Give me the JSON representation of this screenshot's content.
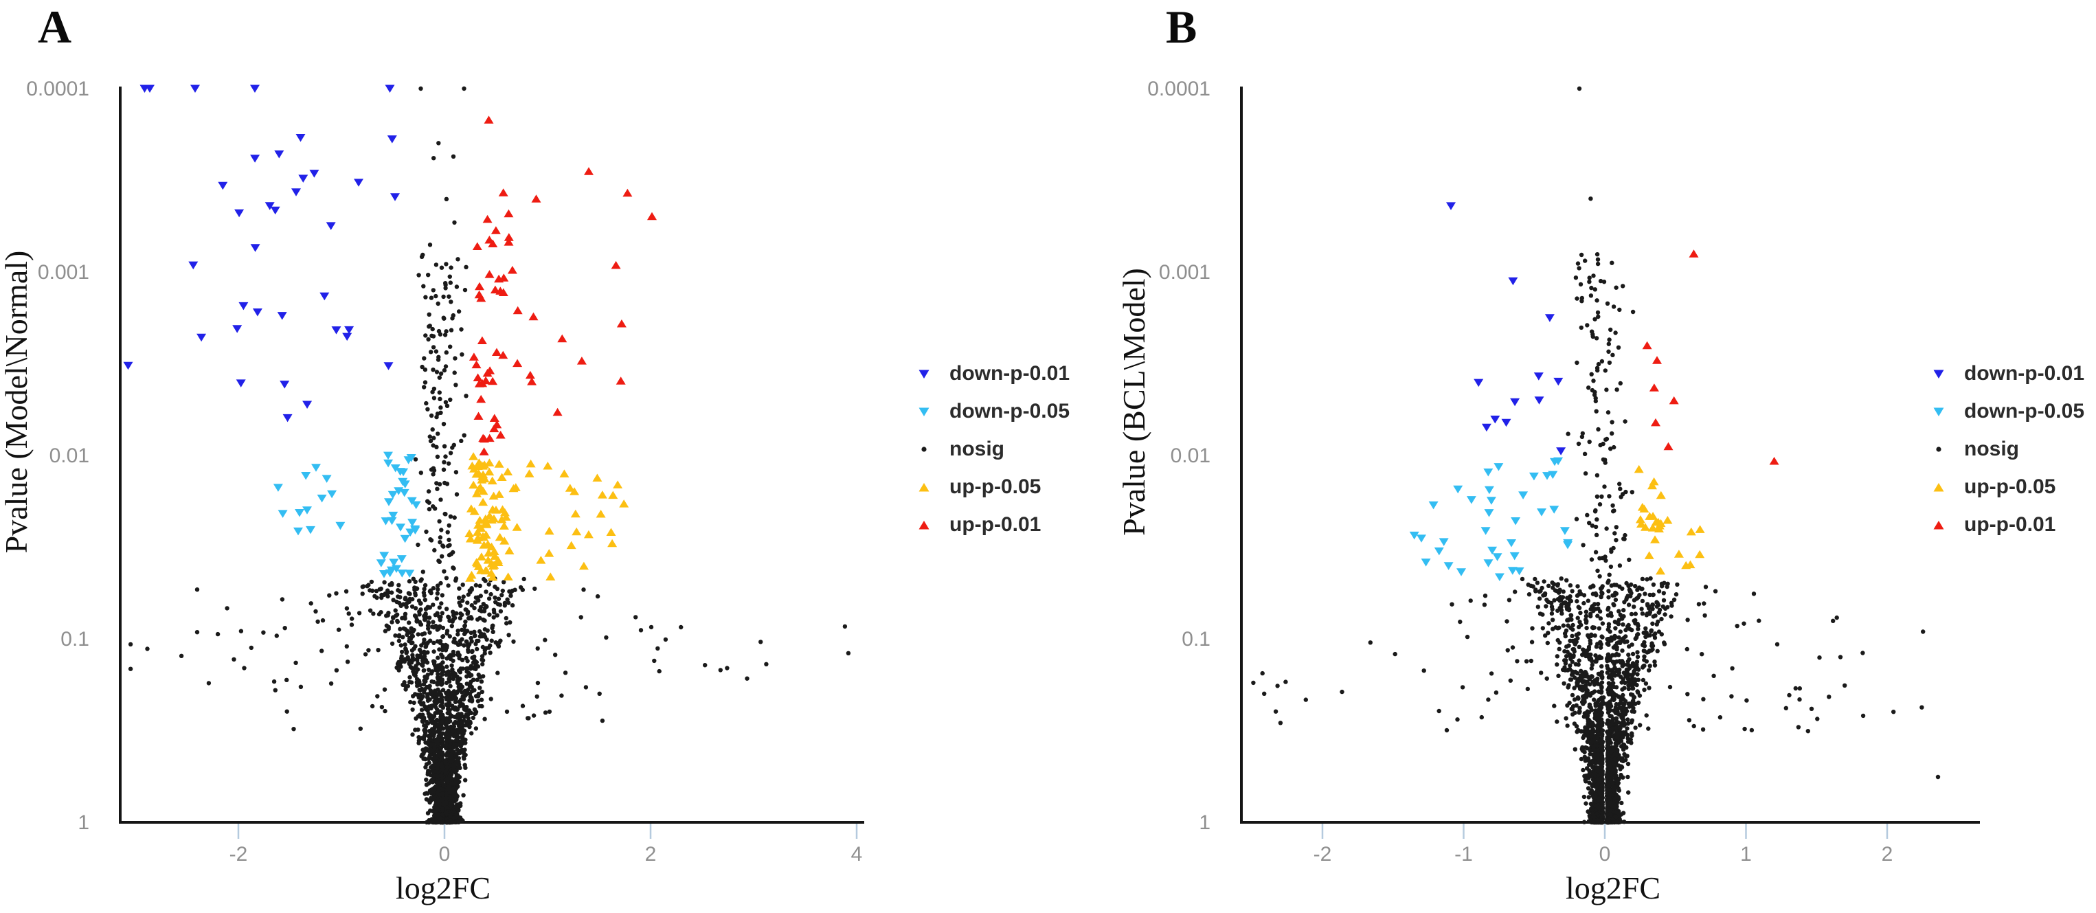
{
  "figure": {
    "background": "#ffffff"
  },
  "seed": 7,
  "colors": {
    "down_p_001": "#2121e8",
    "down_p_005": "#33bdf2",
    "nosig": "#1a1a1a",
    "up_p_005": "#fcbf12",
    "up_p_001": "#ee1c12",
    "axis": "#151515",
    "tick_mark": "#b5cade",
    "tick_label": "#8f8f8f"
  },
  "chart_data": [
    {
      "panel_label": "A",
      "type": "scatter",
      "xlabel": "log2FC",
      "ylabel": "Pvalue (Model\\Normal)",
      "x_ticks": [
        -2,
        0,
        2,
        4
      ],
      "y_ticks": [
        {
          "label": "0.0001",
          "p": 0.0001
        },
        {
          "label": "0.001",
          "p": 0.001
        },
        {
          "label": "0.01",
          "p": 0.01
        },
        {
          "label": "0.1",
          "p": 0.1
        },
        {
          "label": "1",
          "p": 1
        }
      ],
      "xlim": [
        -3.1,
        4.05
      ],
      "p_lim": [
        0.0001,
        1
      ],
      "y_scale": "log10 p-value, inverted (smallest p on top)",
      "legend_position": "right of plot",
      "legend": [
        {
          "label": "down-p-0.01",
          "color": "#2121e8",
          "marker": "triangle-down"
        },
        {
          "label": "down-p-0.05",
          "color": "#33bdf2",
          "marker": "triangle-down"
        },
        {
          "label": "nosig",
          "color": "#1a1a1a",
          "marker": "dot"
        },
        {
          "label": "up-p-0.05",
          "color": "#fcbf12",
          "marker": "triangle-up"
        },
        {
          "label": "up-p-0.01",
          "color": "#ee1c12",
          "marker": "triangle-up"
        }
      ],
      "series": [
        {
          "name": "nosig",
          "color": "#1a1a1a",
          "marker": "dot",
          "clusters": [
            {
              "kind": "funnel",
              "n": 2300,
              "emax": 1.33,
              "pow": 2.1,
              "w0": 0.045,
              "wmax": 0.72,
              "wp": 1.55,
              "noise": 0.05,
              "gap": 0.012
            },
            {
              "n": 130,
              "x": {
                "g": [
                  0,
                  0.95
                ],
                "clip": [
                  -2.4,
                  2.4
                ]
              },
              "e": {
                "u": [
                  0.5,
                  1.3
                ]
              }
            },
            {
              "n": 16,
              "x": {
                "u": [
                  1.5,
                  4.0
                ]
              },
              "e": {
                "g": [
                  0.95,
                  0.12
                ]
              }
            },
            {
              "n": 13,
              "x": {
                "u": [
                  -3.05,
                  -1.5
                ]
              },
              "e": {
                "g": [
                  1.0,
                  0.15
                ]
              }
            },
            {
              "n": 150,
              "x": {
                "g": [
                  -0.02,
                  0.1
                ],
                "clip": [
                  -0.28,
                  0.21
                ]
              },
              "e": {
                "u": [
                  1.33,
                  3.05
                ]
              }
            },
            {
              "n": 9,
              "x": {
                "g": [
                  -0.03,
                  0.11
                ],
                "clip": [
                  -0.28,
                  0.21
                ]
              },
              "e": {
                "u": [
                  3.05,
                  3.8
                ]
              }
            }
          ],
          "points": [
            [
              -0.23,
              4
            ],
            [
              0.19,
              4
            ]
          ]
        },
        {
          "name": "down-p-0.01",
          "color": "#2121e8",
          "marker": "triangle-down",
          "clusters": [
            {
              "n": 30,
              "x": {
                "u": [
                  -2.65,
                  -0.35
                ]
              },
              "e": {
                "u": [
                  2.02,
                  3.85
                ]
              }
            }
          ],
          "points": [
            [
              -2.91,
              4
            ],
            [
              -2.86,
              4
            ],
            [
              -2.42,
              4
            ],
            [
              -1.84,
              4
            ],
            [
              -0.53,
              4
            ],
            [
              -3.07,
              2.49
            ]
          ]
        },
        {
          "name": "down-p-0.05",
          "color": "#33bdf2",
          "marker": "triangle-down",
          "clusters": [
            {
              "n": 34,
              "x": {
                "u": [
                  -0.62,
                  -0.27
                ]
              },
              "e": {
                "u": [
                  1.33,
                  2.0
                ]
              }
            },
            {
              "n": 12,
              "x": {
                "u": [
                  -1.7,
                  -0.62
                ]
              },
              "e": {
                "u": [
                  1.34,
                  1.98
                ]
              }
            }
          ]
        },
        {
          "name": "up-p-0.05",
          "color": "#fcbf12",
          "marker": "triangle-up",
          "clusters": [
            {
              "n": 62,
              "x": {
                "u": [
                  0.24,
                  0.48
                ]
              },
              "e": {
                "u": [
                  1.33,
                  2.0
                ]
              }
            },
            {
              "n": 46,
              "x": {
                "pw": [
                  0.48,
                  1.8,
                  1.8
                ]
              },
              "e": {
                "u": [
                  1.33,
                  1.97
                ]
              }
            }
          ]
        },
        {
          "name": "up-p-0.01",
          "color": "#ee1c12",
          "marker": "triangle-up",
          "clusters": [
            {
              "n": 30,
              "x": {
                "u": [
                  0.28,
                  0.52
                ]
              },
              "e": {
                "u": [
                  2.0,
                  3.3
                ]
              }
            },
            {
              "n": 24,
              "x": {
                "pw": [
                  0.52,
                  2.05,
                  1.6
                ]
              },
              "e": {
                "u": [
                  2.0,
                  3.5
                ]
              }
            }
          ],
          "points": [
            [
              0.43,
              3.83
            ],
            [
              1.4,
              3.55
            ],
            [
              0.89,
              3.4
            ]
          ]
        }
      ]
    },
    {
      "panel_label": "B",
      "type": "scatter",
      "xlabel": "log2FC",
      "ylabel": "Pvalue (BCL\\Model)",
      "x_ticks": [
        -2,
        -1,
        0,
        1,
        2
      ],
      "y_ticks": [
        {
          "label": "0.0001",
          "p": 0.0001
        },
        {
          "label": "0.001",
          "p": 0.001
        },
        {
          "label": "0.01",
          "p": 0.01
        },
        {
          "label": "0.1",
          "p": 0.1
        },
        {
          "label": "1",
          "p": 1
        }
      ],
      "xlim": [
        -2.56,
        2.63
      ],
      "p_lim": [
        0.0001,
        1
      ],
      "y_scale": "log10 p-value, inverted (smallest p on top)",
      "legend_position": "right of plot",
      "legend": [
        {
          "label": "down-p-0.01",
          "color": "#2121e8",
          "marker": "triangle-down"
        },
        {
          "label": "down-p-0.05",
          "color": "#33bdf2",
          "marker": "triangle-down"
        },
        {
          "label": "nosig",
          "color": "#1a1a1a",
          "marker": "dot"
        },
        {
          "label": "up-p-0.05",
          "color": "#fcbf12",
          "marker": "triangle-up"
        },
        {
          "label": "up-p-0.01",
          "color": "#ee1c12",
          "marker": "triangle-up"
        }
      ],
      "series": [
        {
          "name": "nosig",
          "color": "#1a1a1a",
          "marker": "dot",
          "clusters": [
            {
              "kind": "funnel",
              "n": 2400,
              "emax": 1.33,
              "pow": 2.2,
              "w0": 0.04,
              "wmax": 0.5,
              "wp": 1.5,
              "noise": 0.04,
              "gap": 0.015
            },
            {
              "n": 120,
              "x": {
                "g": [
                  0,
                  0.7
                ],
                "clip": [
                  -1.9,
                  1.9
                ]
              },
              "e": {
                "u": [
                  0.5,
                  1.3
                ]
              }
            },
            {
              "n": 14,
              "x": {
                "u": [
                  1.1,
                  2.55
                ]
              },
              "e": {
                "g": [
                  0.72,
                  0.18
                ]
              }
            },
            {
              "n": 12,
              "x": {
                "u": [
                  -2.54,
                  -1.0
                ]
              },
              "e": {
                "g": [
                  0.72,
                  0.15
                ]
              }
            },
            {
              "n": 130,
              "x": {
                "g": [
                  -0.02,
                  0.1
                ],
                "clip": [
                  -0.26,
                  0.2
                ]
              },
              "e": {
                "u": [
                  1.33,
                  3.1
                ]
              }
            }
          ],
          "points": [
            [
              -0.18,
              4
            ],
            [
              0.05,
              3.05
            ],
            [
              -0.1,
              3.4
            ]
          ]
        },
        {
          "name": "down-p-0.01",
          "color": "#2121e8",
          "marker": "triangle-down",
          "clusters": [
            {
              "n": 9,
              "x": {
                "u": [
                  -1.05,
                  -0.3
                ]
              },
              "e": {
                "u": [
                  2.02,
                  2.6
                ]
              }
            }
          ],
          "points": [
            [
              -1.09,
              3.36
            ],
            [
              -0.65,
              2.95
            ],
            [
              -0.39,
              2.75
            ]
          ]
        },
        {
          "name": "down-p-0.05",
          "color": "#33bdf2",
          "marker": "triangle-down",
          "clusters": [
            {
              "n": 26,
              "x": {
                "u": [
                  -0.85,
                  -0.26
                ]
              },
              "e": {
                "u": [
                  1.33,
                  1.97
                ]
              }
            },
            {
              "n": 10,
              "x": {
                "u": [
                  -1.55,
                  -0.85
                ]
              },
              "e": {
                "u": [
                  1.35,
                  1.9
                ]
              }
            }
          ]
        },
        {
          "name": "up-p-0.05",
          "color": "#fcbf12",
          "marker": "triangle-up",
          "clusters": [
            {
              "n": 20,
              "x": {
                "u": [
                  0.24,
                  0.4
                ]
              },
              "e": {
                "u": [
                  1.32,
                  1.95
                ]
              }
            },
            {
              "n": 7,
              "x": {
                "u": [
                  0.42,
                  0.68
                ]
              },
              "e": {
                "u": [
                  1.35,
                  1.8
                ]
              }
            }
          ]
        },
        {
          "name": "up-p-0.01",
          "color": "#ee1c12",
          "marker": "triangle-up",
          "points": [
            [
              0.35,
              2.37
            ],
            [
              0.37,
              2.52
            ],
            [
              0.49,
              2.3
            ],
            [
              0.36,
              2.18
            ],
            [
              0.63,
              3.1
            ],
            [
              1.2,
              1.97
            ],
            [
              0.3,
              2.6
            ],
            [
              0.45,
              2.05
            ]
          ]
        }
      ]
    }
  ]
}
